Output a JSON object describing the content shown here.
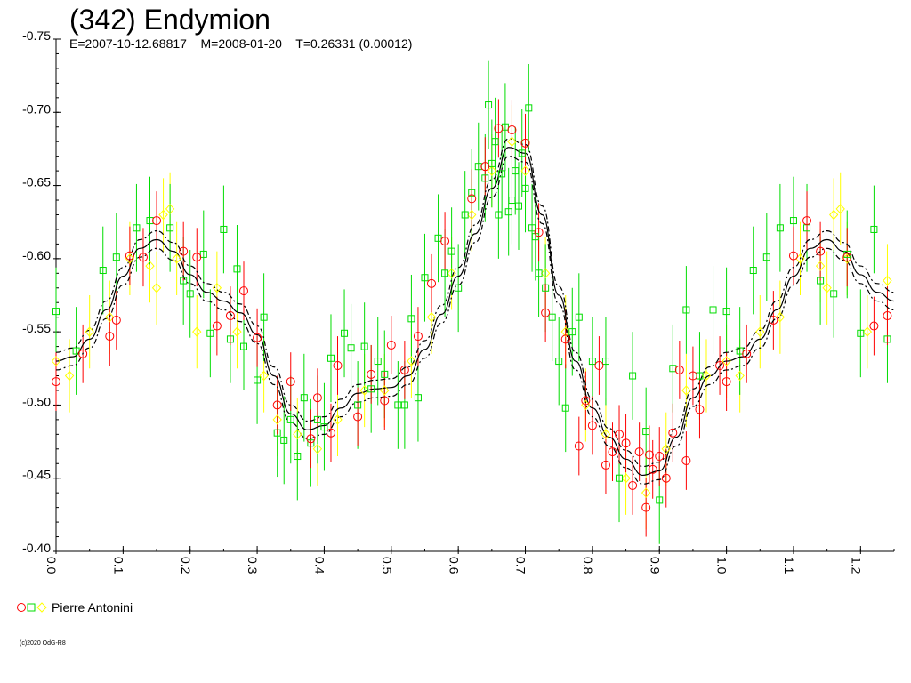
{
  "chart_data": {
    "type": "scatter",
    "title": "(342) Endymion",
    "subtitle": "E=2007-10-12.68817    M=2008-01-20    T=0.26331 (0.00012)",
    "xlim": [
      0.0,
      1.25
    ],
    "ylim": [
      -0.75,
      -0.4
    ],
    "y_inverted": true,
    "x_ticks": [
      "0.0",
      "0.1",
      "0.2",
      "0.3",
      "0.4",
      "0.5",
      "0.6",
      "0.7",
      "0.8",
      "0.9",
      "1.0",
      "1.1",
      "1.2"
    ],
    "y_ticks": [
      "-0.75",
      "-0.70",
      "-0.65",
      "-0.60",
      "-0.55",
      "-0.50",
      "-0.45",
      "-0.40"
    ],
    "grid": false,
    "legend_position": "bottom-left",
    "legend_label": "Pierre Antonini",
    "copyright": "(c)2020 OdG-R8",
    "colors": {
      "red": "#ff0000",
      "green": "#00dd00",
      "yellow": "#ffff00",
      "fit": "#000000"
    },
    "fit_curve": {
      "x": [
        0.0,
        0.025,
        0.05,
        0.075,
        0.1,
        0.125,
        0.15,
        0.175,
        0.2,
        0.225,
        0.25,
        0.275,
        0.3,
        0.325,
        0.35,
        0.375,
        0.4,
        0.425,
        0.45,
        0.475,
        0.5,
        0.525,
        0.55,
        0.575,
        0.6,
        0.625,
        0.65,
        0.675,
        0.7,
        0.725,
        0.75,
        0.775,
        0.8,
        0.825,
        0.85,
        0.875,
        0.9,
        0.925,
        0.95,
        0.975,
        1.0,
        1.025,
        1.05,
        1.075,
        1.1,
        1.125,
        1.15,
        1.175,
        1.2,
        1.225,
        1.25
      ],
      "y": [
        -0.53,
        -0.533,
        -0.545,
        -0.565,
        -0.588,
        -0.607,
        -0.613,
        -0.605,
        -0.589,
        -0.577,
        -0.571,
        -0.563,
        -0.548,
        -0.52,
        -0.494,
        -0.483,
        -0.486,
        -0.498,
        -0.508,
        -0.511,
        -0.512,
        -0.52,
        -0.538,
        -0.562,
        -0.588,
        -0.617,
        -0.648,
        -0.676,
        -0.672,
        -0.63,
        -0.575,
        -0.53,
        -0.498,
        -0.478,
        -0.463,
        -0.452,
        -0.455,
        -0.478,
        -0.505,
        -0.52,
        -0.53,
        -0.533,
        -0.545,
        -0.565,
        -0.588,
        -0.607,
        -0.613,
        -0.605,
        -0.589,
        -0.577,
        -0.571
      ],
      "band": 0.006
    },
    "series": [
      {
        "color": "red",
        "marker": "circle",
        "x": [
          0.0,
          0.04,
          0.08,
          0.09,
          0.11,
          0.13,
          0.15,
          0.19,
          0.21,
          0.24,
          0.26,
          0.28,
          0.3,
          0.33,
          0.35,
          0.38,
          0.39,
          0.41,
          0.42,
          0.45,
          0.47,
          0.49,
          0.5,
          0.52,
          0.54,
          0.56,
          0.58,
          0.62,
          0.64,
          0.66,
          0.68,
          0.7,
          0.72,
          0.73,
          0.76,
          0.78,
          0.79,
          0.8,
          0.81,
          0.82,
          0.83,
          0.84,
          0.85,
          0.86,
          0.87,
          0.88,
          0.885,
          0.89,
          0.9,
          0.91,
          0.92,
          0.93,
          0.94,
          0.95,
          0.96,
          0.99,
          1.0,
          1.03,
          1.07,
          1.1,
          1.12,
          1.14,
          1.18,
          1.22,
          1.24
        ],
        "y": [
          -0.516,
          -0.535,
          -0.547,
          -0.558,
          -0.602,
          -0.601,
          -0.626,
          -0.605,
          -0.601,
          -0.554,
          -0.561,
          -0.578,
          -0.546,
          -0.5,
          -0.516,
          -0.477,
          -0.505,
          -0.481,
          -0.527,
          -0.492,
          -0.521,
          -0.503,
          -0.541,
          -0.524,
          -0.547,
          -0.583,
          -0.612,
          -0.641,
          -0.663,
          -0.689,
          -0.688,
          -0.679,
          -0.618,
          -0.563,
          -0.545,
          -0.472,
          -0.503,
          -0.486,
          -0.527,
          -0.459,
          -0.468,
          -0.48,
          -0.474,
          -0.445,
          -0.468,
          -0.43,
          -0.466,
          -0.456,
          -0.465,
          -0.45,
          -0.481,
          -0.524,
          -0.462,
          -0.52,
          -0.497,
          -0.527,
          -0.516,
          -0.535,
          -0.558,
          -0.602,
          -0.626,
          -0.605,
          -0.601,
          -0.554,
          -0.561
        ],
        "yerr": [
          0.02,
          0.02,
          0.02,
          0.02,
          0.02,
          0.02,
          0.02,
          0.02,
          0.02,
          0.02,
          0.02,
          0.02,
          0.02,
          0.02,
          0.02,
          0.02,
          0.02,
          0.02,
          0.02,
          0.02,
          0.02,
          0.02,
          0.02,
          0.02,
          0.02,
          0.02,
          0.02,
          0.02,
          0.02,
          0.02,
          0.02,
          0.02,
          0.02,
          0.02,
          0.02,
          0.02,
          0.02,
          0.02,
          0.02,
          0.02,
          0.02,
          0.02,
          0.02,
          0.02,
          0.02,
          0.02,
          0.02,
          0.02,
          0.02,
          0.02,
          0.02,
          0.02,
          0.02,
          0.02,
          0.02,
          0.02,
          0.02,
          0.02,
          0.02,
          0.02,
          0.02,
          0.02,
          0.02,
          0.02,
          0.02
        ]
      },
      {
        "color": "green",
        "marker": "square",
        "x": [
          0.0,
          0.03,
          0.07,
          0.09,
          0.12,
          0.14,
          0.17,
          0.19,
          0.2,
          0.22,
          0.23,
          0.25,
          0.26,
          0.27,
          0.28,
          0.3,
          0.31,
          0.33,
          0.34,
          0.35,
          0.36,
          0.37,
          0.38,
          0.39,
          0.4,
          0.41,
          0.43,
          0.44,
          0.45,
          0.46,
          0.47,
          0.48,
          0.49,
          0.51,
          0.52,
          0.53,
          0.54,
          0.55,
          0.57,
          0.58,
          0.59,
          0.6,
          0.61,
          0.62,
          0.63,
          0.64,
          0.645,
          0.65,
          0.655,
          0.66,
          0.665,
          0.67,
          0.675,
          0.68,
          0.685,
          0.69,
          0.695,
          0.7,
          0.705,
          0.71,
          0.715,
          0.72,
          0.73,
          0.74,
          0.75,
          0.76,
          0.77,
          0.78,
          0.8,
          0.82,
          0.84,
          0.86,
          0.88,
          0.9,
          0.92,
          0.94,
          0.96,
          0.98,
          1.0,
          1.02,
          1.04,
          1.06,
          1.08,
          1.1,
          1.12,
          1.14,
          1.16,
          1.18,
          1.2,
          1.22,
          1.24
        ],
        "y": [
          -0.564,
          -0.537,
          -0.592,
          -0.601,
          -0.621,
          -0.626,
          -0.621,
          -0.585,
          -0.576,
          -0.603,
          -0.549,
          -0.62,
          -0.545,
          -0.593,
          -0.54,
          -0.517,
          -0.56,
          -0.481,
          -0.476,
          -0.49,
          -0.465,
          -0.505,
          -0.474,
          -0.49,
          -0.485,
          -0.532,
          -0.549,
          -0.539,
          -0.5,
          -0.54,
          -0.511,
          -0.53,
          -0.521,
          -0.5,
          -0.5,
          -0.559,
          -0.505,
          -0.587,
          -0.614,
          -0.59,
          -0.605,
          -0.58,
          -0.63,
          -0.645,
          -0.663,
          -0.655,
          -0.705,
          -0.665,
          -0.68,
          -0.63,
          -0.658,
          -0.69,
          -0.632,
          -0.64,
          -0.66,
          -0.636,
          -0.672,
          -0.648,
          -0.703,
          -0.621,
          -0.615,
          -0.59,
          -0.58,
          -0.56,
          -0.53,
          -0.498,
          -0.55,
          -0.56,
          -0.53,
          -0.53,
          -0.45,
          -0.52,
          -0.482,
          -0.435,
          -0.525,
          -0.565,
          -0.52,
          -0.565,
          -0.564,
          -0.537,
          -0.592,
          -0.601,
          -0.621,
          -0.626,
          -0.621,
          -0.585,
          -0.576,
          -0.603,
          -0.549,
          -0.62,
          -0.545
        ],
        "yerr": [
          0.03,
          0.03,
          0.03,
          0.03,
          0.03,
          0.03,
          0.03,
          0.03,
          0.03,
          0.03,
          0.03,
          0.03,
          0.03,
          0.03,
          0.03,
          0.03,
          0.03,
          0.03,
          0.03,
          0.03,
          0.03,
          0.03,
          0.03,
          0.03,
          0.03,
          0.03,
          0.03,
          0.03,
          0.03,
          0.03,
          0.03,
          0.03,
          0.03,
          0.03,
          0.03,
          0.03,
          0.03,
          0.03,
          0.03,
          0.03,
          0.03,
          0.03,
          0.03,
          0.03,
          0.03,
          0.03,
          0.03,
          0.03,
          0.03,
          0.03,
          0.03,
          0.03,
          0.03,
          0.03,
          0.03,
          0.03,
          0.03,
          0.03,
          0.03,
          0.03,
          0.03,
          0.03,
          0.03,
          0.03,
          0.03,
          0.03,
          0.03,
          0.03,
          0.03,
          0.03,
          0.03,
          0.03,
          0.03,
          0.03,
          0.03,
          0.03,
          0.03,
          0.03,
          0.03,
          0.03,
          0.03,
          0.03,
          0.03,
          0.03,
          0.03,
          0.03,
          0.03,
          0.03,
          0.03,
          0.03,
          0.03
        ]
      },
      {
        "color": "yellow",
        "marker": "diamond",
        "x": [
          0.0,
          0.02,
          0.05,
          0.08,
          0.11,
          0.14,
          0.15,
          0.16,
          0.17,
          0.18,
          0.21,
          0.24,
          0.27,
          0.31,
          0.33,
          0.36,
          0.39,
          0.42,
          0.46,
          0.49,
          0.53,
          0.56,
          0.59,
          0.62,
          0.65,
          0.68,
          0.7,
          0.73,
          0.76,
          0.79,
          0.82,
          0.85,
          0.88,
          0.91,
          0.94,
          0.97,
          1.0,
          1.02,
          1.05,
          1.08,
          1.11,
          1.14,
          1.15,
          1.16,
          1.17,
          1.18,
          1.21,
          1.24
        ],
        "y": [
          -0.53,
          -0.52,
          -0.55,
          -0.56,
          -0.6,
          -0.595,
          -0.58,
          -0.63,
          -0.634,
          -0.6,
          -0.55,
          -0.58,
          -0.55,
          -0.52,
          -0.49,
          -0.48,
          -0.47,
          -0.49,
          -0.51,
          -0.51,
          -0.53,
          -0.56,
          -0.59,
          -0.63,
          -0.66,
          -0.68,
          -0.66,
          -0.59,
          -0.55,
          -0.5,
          -0.48,
          -0.45,
          -0.44,
          -0.47,
          -0.51,
          -0.52,
          -0.53,
          -0.52,
          -0.55,
          -0.56,
          -0.6,
          -0.595,
          -0.58,
          -0.63,
          -0.634,
          -0.6,
          -0.55,
          -0.585
        ],
        "yerr": [
          0.025,
          0.025,
          0.025,
          0.025,
          0.025,
          0.025,
          0.025,
          0.025,
          0.025,
          0.025,
          0.025,
          0.025,
          0.025,
          0.025,
          0.025,
          0.025,
          0.025,
          0.025,
          0.025,
          0.025,
          0.025,
          0.025,
          0.025,
          0.025,
          0.025,
          0.025,
          0.025,
          0.025,
          0.025,
          0.025,
          0.025,
          0.025,
          0.025,
          0.025,
          0.025,
          0.025,
          0.025,
          0.025,
          0.025,
          0.025,
          0.025,
          0.025,
          0.025,
          0.025,
          0.025,
          0.025,
          0.025,
          0.025
        ]
      }
    ]
  }
}
